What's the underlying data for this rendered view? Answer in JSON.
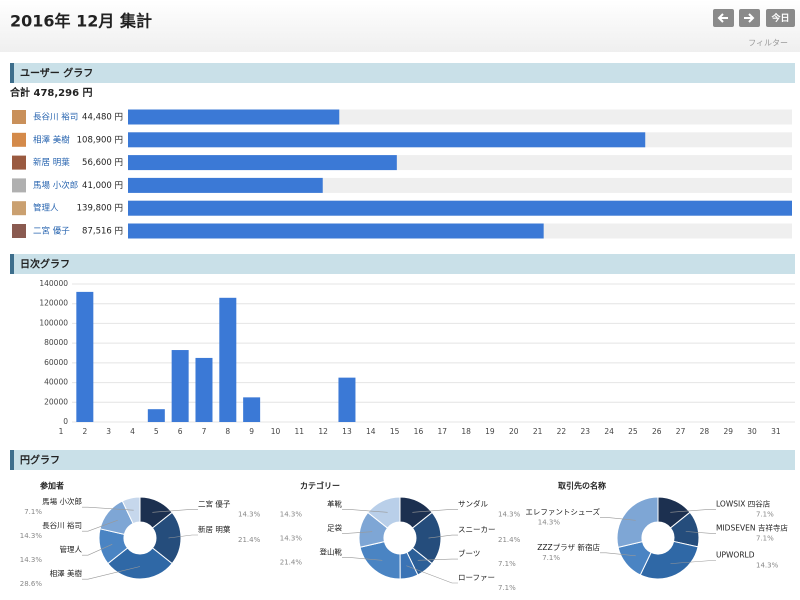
{
  "header": {
    "title": "2016年 12月 集計",
    "today": "今日",
    "filter": "フィルター"
  },
  "sections": [
    "ユーザー グラフ",
    "日次グラフ",
    "円グラフ"
  ],
  "chart_data": [
    {
      "type": "hbar",
      "subtitle": "合計 478,296 円",
      "categories": [
        "長谷川 裕司",
        "相澤 美樹",
        "新居 明葉",
        "馬場 小次郎",
        "管理人",
        "二宮 優子"
      ],
      "values": [
        44480,
        108900,
        56600,
        41000,
        139800,
        87516
      ],
      "value_labels": [
        "44,480 円",
        "108,900 円",
        "56,600 円",
        "41,000 円",
        "139,800 円",
        "87,516 円"
      ],
      "color": "#3b79d6"
    },
    {
      "type": "bar",
      "categories": [
        1,
        2,
        3,
        4,
        5,
        6,
        7,
        8,
        9,
        10,
        11,
        12,
        13,
        14,
        15,
        16,
        17,
        18,
        19,
        20,
        21,
        22,
        23,
        24,
        25,
        26,
        27,
        28,
        29,
        30,
        31
      ],
      "values": [
        0,
        132000,
        0,
        0,
        13000,
        73000,
        65000,
        126000,
        25000,
        0,
        0,
        0,
        45000,
        0,
        0,
        0,
        0,
        0,
        0,
        0,
        0,
        0,
        0,
        0,
        0,
        0,
        0,
        0,
        0,
        0,
        0
      ],
      "ylim": [
        0,
        140000
      ],
      "yticks": [
        0,
        20000,
        40000,
        60000,
        80000,
        100000,
        120000,
        140000
      ],
      "color": "#3b79d6",
      "grid": true
    },
    {
      "type": "donut",
      "title": "参加者",
      "categories": [
        "二宮 優子",
        "新居 明葉",
        "相澤 美樹",
        "管理人",
        "長谷川 裕司",
        "馬場 小次郎"
      ],
      "values": [
        14.3,
        21.4,
        28.6,
        14.3,
        14.3,
        7.1
      ],
      "value_labels": [
        "14.3%",
        "21.4%",
        "28.6%",
        "14.3%",
        "14.3%",
        "7.1%"
      ],
      "colors": [
        "#1c3050",
        "#254d7c",
        "#2f68a6",
        "#4a84c3",
        "#7ea6d5",
        "#c6d7ec"
      ]
    },
    {
      "type": "donut",
      "title": "カテゴリー",
      "categories": [
        "サンダル",
        "スニーカー",
        "ブーツ",
        "ローファー",
        "登山靴",
        "足袋",
        "革靴"
      ],
      "values": [
        14.3,
        21.4,
        7.1,
        7.1,
        21.4,
        14.3,
        14.3
      ],
      "value_labels": [
        "14.3%",
        "21.4%",
        "7.1%",
        "7.1%",
        "21.4%",
        "14.3%",
        "14.3%"
      ],
      "colors": [
        "#1c3050",
        "#254d7c",
        "#2c5f98",
        "#3a73b5",
        "#4a84c3",
        "#7ea6d5",
        "#b9cfe9"
      ]
    },
    {
      "type": "donut",
      "title": "取引先の名称",
      "categories": [
        "LOWSIX 四谷店",
        "MIDSEVEN 吉祥寺店",
        "UPWORLD",
        "ZZZプラザ 新宿店",
        "エレファントシューズ"
      ],
      "values": [
        7.1,
        7.1,
        14.3,
        7.1,
        14.3
      ],
      "value_labels": [
        "7.1%",
        "7.1%",
        "14.3%",
        "7.1%",
        "14.3%"
      ],
      "colors": [
        "#1c3050",
        "#254d7c",
        "#2f68a6",
        "#4a84c3",
        "#7ea6d5"
      ]
    }
  ]
}
